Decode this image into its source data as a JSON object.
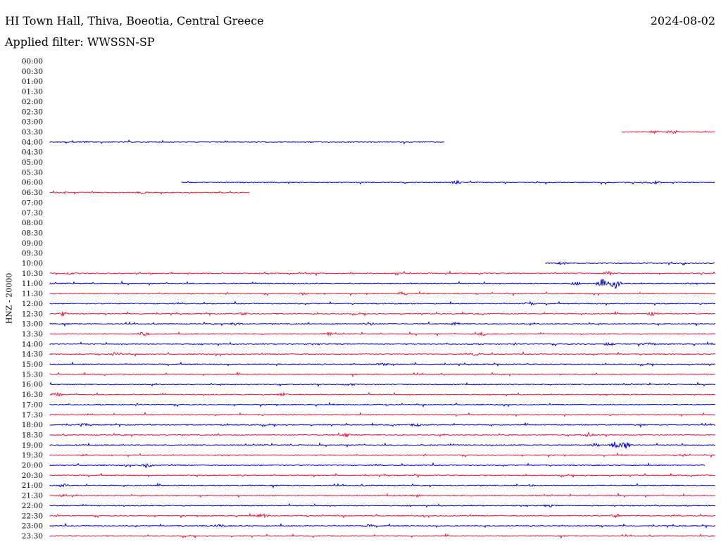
{
  "header": {
    "title": "HI Town Hall, Thiva, Boeotia, Central Greece",
    "date": "2024-08-02",
    "filter": "Applied filter: WWSSN-SP"
  },
  "chart_data": {
    "type": "line",
    "title": "HI Town Hall, Thiva, Boeotia, Central Greece",
    "ylabel": "HNZ - 20000",
    "colors": {
      "odd": "#0000cc",
      "even": "#e8163c"
    },
    "rows": [
      {
        "label": "00:00",
        "start": null,
        "end": null,
        "events": []
      },
      {
        "label": "00:30",
        "start": null,
        "end": null,
        "events": []
      },
      {
        "label": "01:00",
        "start": null,
        "end": null,
        "events": []
      },
      {
        "label": "01:30",
        "start": null,
        "end": null,
        "events": []
      },
      {
        "label": "02:00",
        "start": null,
        "end": null,
        "events": []
      },
      {
        "label": "02:30",
        "start": null,
        "end": null,
        "events": []
      },
      {
        "label": "03:00",
        "start": null,
        "end": null,
        "events": []
      },
      {
        "label": "03:30",
        "start": 0.86,
        "end": 1.0,
        "events": [
          [
            0.935,
            3
          ],
          [
            0.91,
            1.5
          ]
        ]
      },
      {
        "label": "04:00",
        "start": 0.0,
        "end": 0.593,
        "events": [
          [
            0.05,
            1
          ]
        ]
      },
      {
        "label": "04:30",
        "start": null,
        "end": null,
        "events": []
      },
      {
        "label": "05:00",
        "start": null,
        "end": null,
        "events": []
      },
      {
        "label": "05:30",
        "start": null,
        "end": null,
        "events": []
      },
      {
        "label": "06:00",
        "start": 0.198,
        "end": 1.0,
        "events": [
          [
            0.61,
            2
          ],
          [
            0.91,
            2
          ]
        ]
      },
      {
        "label": "06:30",
        "start": 0.0,
        "end": 0.3,
        "events": [
          [
            0.14,
            1.5
          ],
          [
            0.02,
            1
          ]
        ]
      },
      {
        "label": "07:00",
        "start": null,
        "end": null,
        "events": []
      },
      {
        "label": "07:30",
        "start": null,
        "end": null,
        "events": []
      },
      {
        "label": "08:00",
        "start": null,
        "end": null,
        "events": []
      },
      {
        "label": "08:30",
        "start": null,
        "end": null,
        "events": []
      },
      {
        "label": "09:00",
        "start": null,
        "end": null,
        "events": []
      },
      {
        "label": "09:30",
        "start": null,
        "end": null,
        "events": []
      },
      {
        "label": "10:00",
        "start": 0.745,
        "end": 1.0,
        "events": [
          [
            0.77,
            1.5
          ]
        ]
      },
      {
        "label": "10:30",
        "start": 0.0,
        "end": 1.0,
        "events": [
          [
            0.84,
            2.5
          ],
          [
            0.03,
            1
          ]
        ]
      },
      {
        "label": "11:00",
        "start": 0.0,
        "end": 1.0,
        "events": [
          [
            0.83,
            6
          ],
          [
            0.85,
            7
          ],
          [
            0.79,
            2
          ]
        ]
      },
      {
        "label": "11:30",
        "start": 0.0,
        "end": 1.0,
        "events": [
          [
            0.53,
            2
          ],
          [
            0.38,
            1.5
          ]
        ]
      },
      {
        "label": "12:00",
        "start": 0.0,
        "end": 1.0,
        "events": [
          [
            0.72,
            2.5
          ]
        ]
      },
      {
        "label": "12:30",
        "start": 0.0,
        "end": 1.0,
        "events": [
          [
            0.02,
            3
          ],
          [
            0.905,
            3
          ],
          [
            0.29,
            1.5
          ]
        ]
      },
      {
        "label": "13:00",
        "start": 0.0,
        "end": 1.0,
        "events": [
          [
            0.28,
            2
          ],
          [
            0.48,
            2
          ],
          [
            0.61,
            1.5
          ]
        ]
      },
      {
        "label": "13:30",
        "start": 0.0,
        "end": 1.0,
        "events": [
          [
            0.14,
            4
          ],
          [
            0.42,
            2
          ],
          [
            0.65,
            2
          ]
        ]
      },
      {
        "label": "14:00",
        "start": 0.0,
        "end": 1.0,
        "events": [
          [
            0.84,
            2
          ],
          [
            0.9,
            1.5
          ]
        ]
      },
      {
        "label": "14:30",
        "start": 0.0,
        "end": 1.0,
        "events": [
          [
            0.1,
            3
          ],
          [
            0.64,
            2
          ]
        ]
      },
      {
        "label": "15:00",
        "start": 0.0,
        "end": 1.0,
        "events": [
          [
            0.5,
            1.5
          ]
        ]
      },
      {
        "label": "15:30",
        "start": 0.0,
        "end": 1.0,
        "events": []
      },
      {
        "label": "16:00",
        "start": 0.0,
        "end": 1.0,
        "events": [
          [
            0.45,
            1.5
          ]
        ]
      },
      {
        "label": "16:30",
        "start": 0.0,
        "end": 1.0,
        "events": [
          [
            0.01,
            2.5
          ],
          [
            0.35,
            2
          ]
        ]
      },
      {
        "label": "17:00",
        "start": 0.0,
        "end": 1.0,
        "events": []
      },
      {
        "label": "17:30",
        "start": 0.0,
        "end": 1.0,
        "events": []
      },
      {
        "label": "18:00",
        "start": 0.0,
        "end": 1.0,
        "events": [
          [
            0.05,
            2
          ],
          [
            0.55,
            2
          ]
        ]
      },
      {
        "label": "18:30",
        "start": 0.0,
        "end": 1.0,
        "events": [
          [
            0.445,
            3
          ],
          [
            0.81,
            3
          ]
        ]
      },
      {
        "label": "19:00",
        "start": 0.0,
        "end": 1.0,
        "events": [
          [
            0.85,
            5
          ],
          [
            0.865,
            5
          ],
          [
            0.82,
            2
          ]
        ]
      },
      {
        "label": "19:30",
        "start": 0.0,
        "end": 1.0,
        "events": [
          [
            0.05,
            1.5
          ],
          [
            0.95,
            1.5
          ]
        ]
      },
      {
        "label": "20:00",
        "start": 0.0,
        "end": 0.985,
        "events": [
          [
            0.145,
            3
          ]
        ]
      },
      {
        "label": "20:30",
        "start": 0.0,
        "end": 1.0,
        "events": []
      },
      {
        "label": "21:00",
        "start": 0.0,
        "end": 1.0,
        "events": [
          [
            0.02,
            2
          ],
          [
            0.72,
            1.5
          ]
        ]
      },
      {
        "label": "21:30",
        "start": 0.0,
        "end": 1.0,
        "events": [
          [
            0.02,
            1.5
          ],
          [
            0.55,
            1.5
          ]
        ]
      },
      {
        "label": "22:00",
        "start": 0.0,
        "end": 1.0,
        "events": [
          [
            0.75,
            1.5
          ]
        ]
      },
      {
        "label": "22:30",
        "start": 0.0,
        "end": 1.0,
        "events": [
          [
            0.32,
            2.5
          ],
          [
            0.85,
            2.5
          ]
        ]
      },
      {
        "label": "23:00",
        "start": 0.0,
        "end": 1.0,
        "events": [
          [
            0.255,
            2
          ],
          [
            0.48,
            1.5
          ]
        ]
      },
      {
        "label": "23:30",
        "start": 0.0,
        "end": 1.0,
        "events": []
      }
    ]
  }
}
